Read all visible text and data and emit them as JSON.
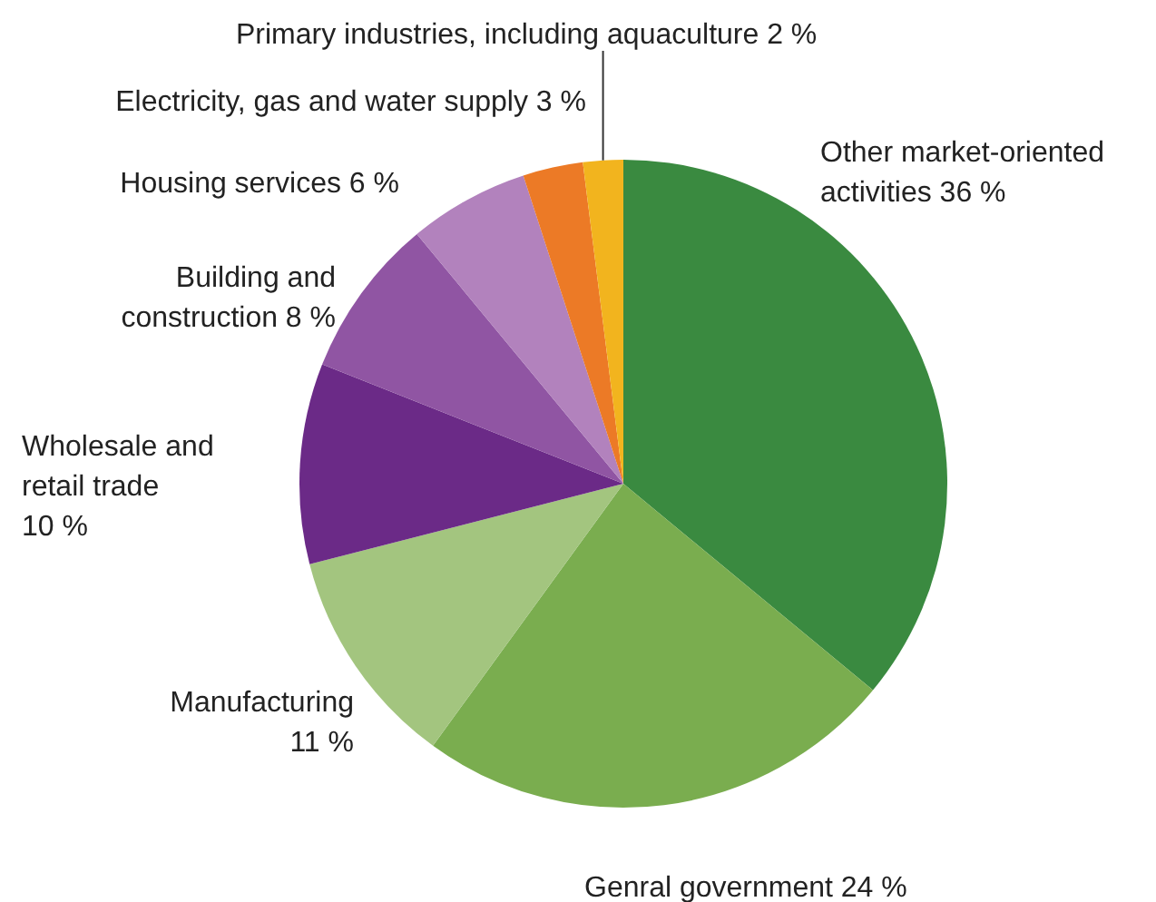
{
  "chart_data": {
    "type": "pie",
    "categories": [
      "Other market-oriented activities",
      "Genral government",
      "Manufacturing",
      "Wholesale and retail trade",
      "Building and construction",
      "Housing services",
      "Electricity, gas and water supply",
      "Primary industries, including aquaculture"
    ],
    "values": [
      36,
      24,
      11,
      10,
      8,
      6,
      3,
      2
    ],
    "value_labels": [
      "36 %",
      "24 %",
      "11 %",
      "10 %",
      "8 %",
      "6 %",
      "3 %",
      "2 %"
    ],
    "colors": [
      "#3a8a40",
      "#7aad4f",
      "#a3c57f",
      "#6b2a87",
      "#9055a3",
      "#b282bd",
      "#ec7a26",
      "#f2b41e"
    ],
    "legend": false
  }
}
